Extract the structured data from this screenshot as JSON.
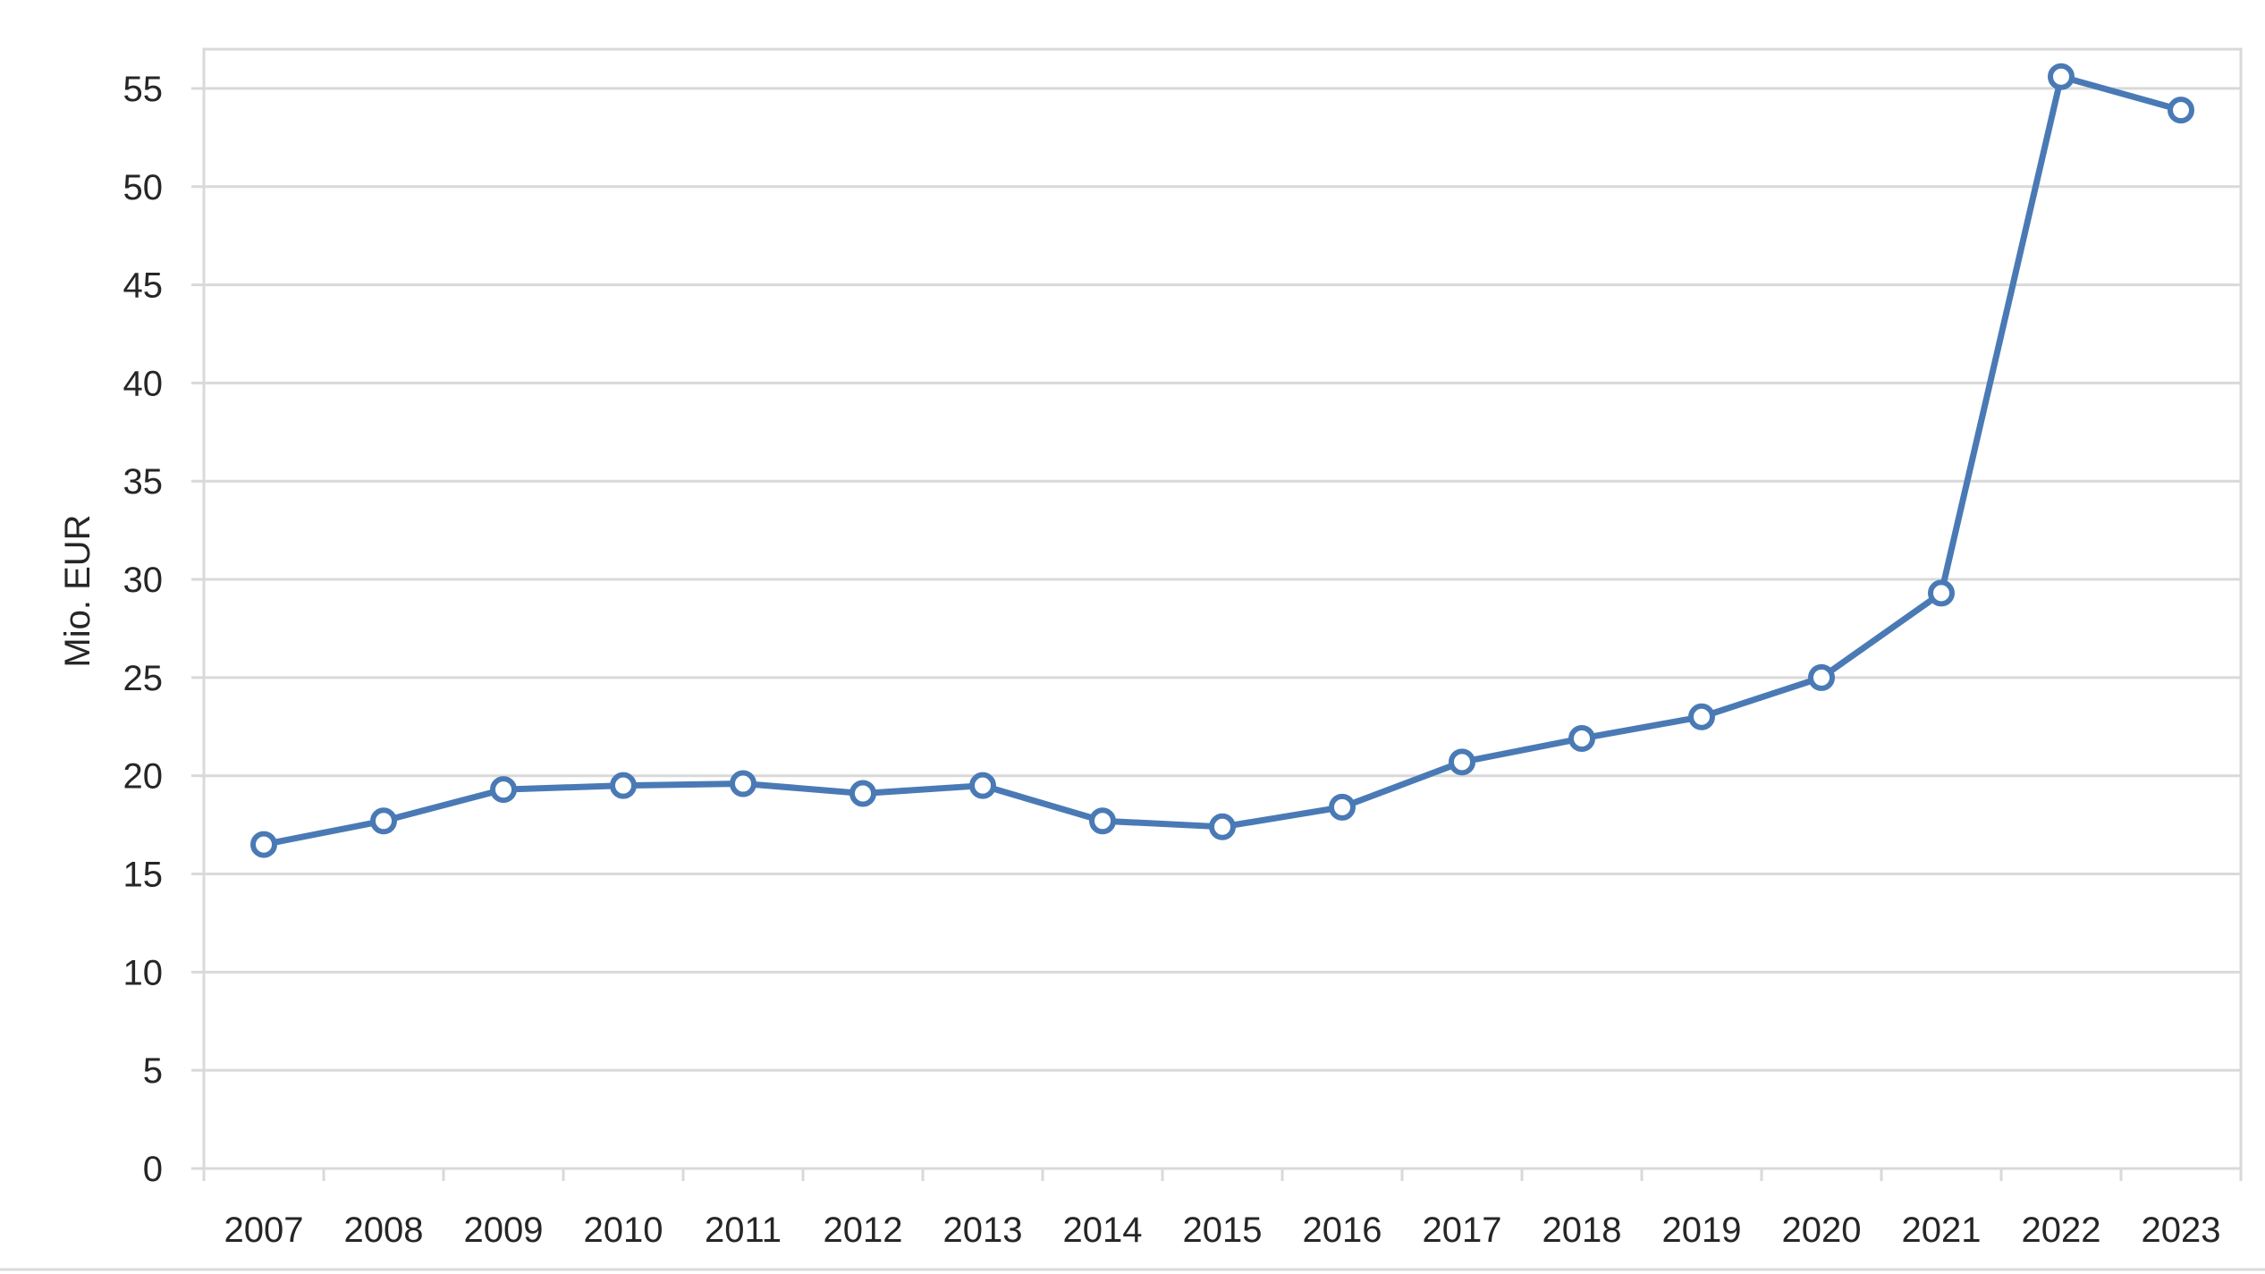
{
  "chart_data": {
    "type": "line",
    "title": "",
    "xlabel": "",
    "ylabel": "Mio. EUR",
    "categories": [
      "2007",
      "2008",
      "2009",
      "2010",
      "2011",
      "2012",
      "2013",
      "2014",
      "2015",
      "2016",
      "2017",
      "2018",
      "2019",
      "2020",
      "2021",
      "2022",
      "2023"
    ],
    "series": [
      {
        "values": [
          16.5,
          17.7,
          19.3,
          19.5,
          19.6,
          19.1,
          19.5,
          17.7,
          17.4,
          18.4,
          20.7,
          21.9,
          23.0,
          25.0,
          29.3,
          55.6,
          53.9
        ]
      }
    ],
    "ylim": [
      0,
      57
    ],
    "yticks": [
      0,
      5,
      10,
      15,
      20,
      25,
      30,
      35,
      40,
      45,
      50,
      55
    ],
    "grid": true,
    "legend": "none",
    "colors": {
      "series": "#4a7ab5",
      "grid": "#d9d9d9",
      "text": "#262626"
    }
  }
}
